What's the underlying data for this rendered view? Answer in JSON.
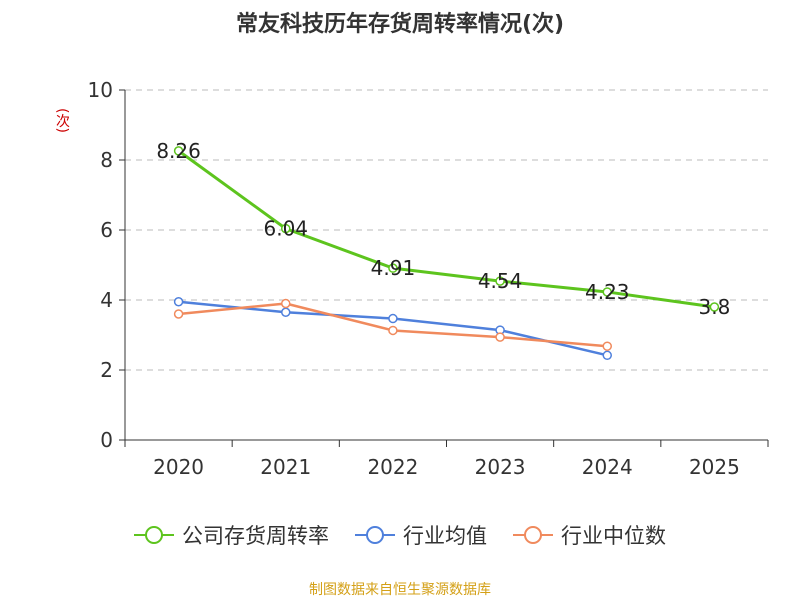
{
  "chart_data": {
    "type": "line",
    "title": "常友科技历年存货周转率情况(次)",
    "ylabel": "(次)",
    "xlabel": "",
    "categories": [
      "2020",
      "2021",
      "2022",
      "2023",
      "2024",
      "2025"
    ],
    "ylim": [
      0,
      10
    ],
    "yticks": [
      0,
      2,
      4,
      6,
      8,
      10
    ],
    "grid": true,
    "legend_position": "bottom",
    "series": [
      {
        "name": "公司存货周转率",
        "color": "#5dc41e",
        "values": [
          8.26,
          6.04,
          4.91,
          4.54,
          4.23,
          3.8
        ],
        "labels": [
          "8.26",
          "6.04",
          "4.91",
          "4.54",
          "4.23",
          "3.8"
        ]
      },
      {
        "name": "行业均值",
        "color": "#4f80dc",
        "values": [
          3.95,
          3.65,
          3.47,
          3.14,
          2.42,
          null
        ]
      },
      {
        "name": "行业中位数",
        "color": "#f08a5d",
        "values": [
          3.6,
          3.9,
          3.13,
          2.94,
          2.68,
          null
        ]
      }
    ]
  },
  "source": "制图数据来自恒生聚源数据库"
}
